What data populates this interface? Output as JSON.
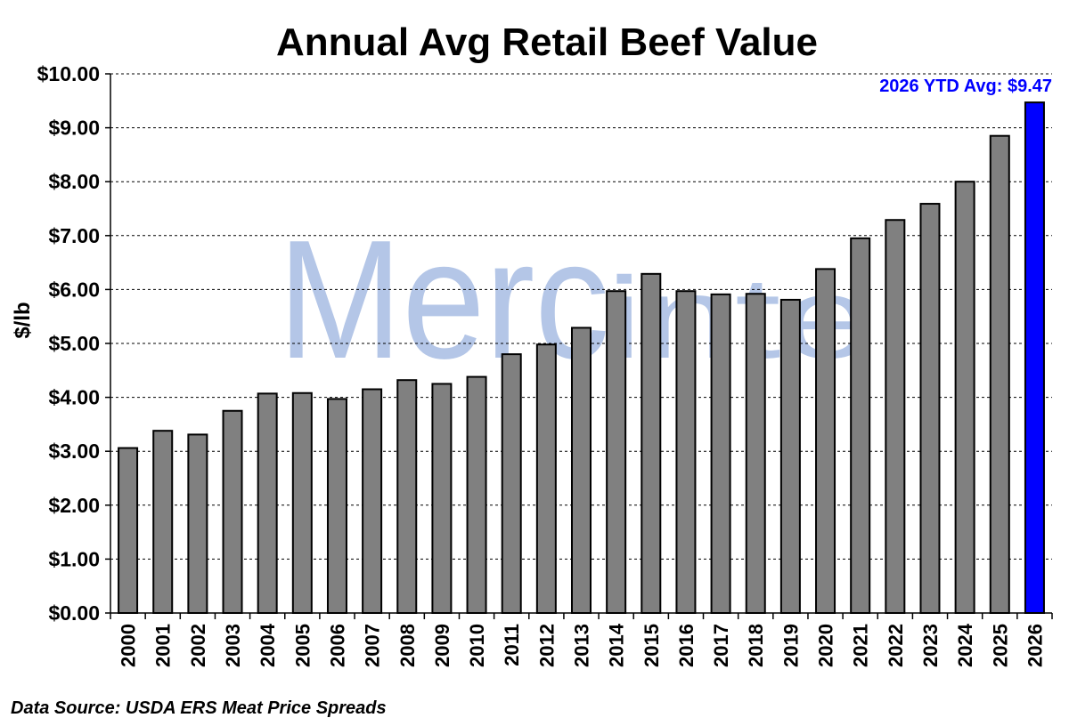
{
  "chart_data": {
    "type": "bar",
    "title": "Annual Avg Retail Beef Value",
    "ylabel": "$/lb",
    "xlabel": "",
    "ylim": [
      0,
      10
    ],
    "ytick_labels": [
      "$0.00",
      "$1.00",
      "$2.00",
      "$3.00",
      "$4.00",
      "$5.00",
      "$6.00",
      "$7.00",
      "$8.00",
      "$9.00",
      "$10.00"
    ],
    "ytick_values": [
      0,
      1,
      2,
      3,
      4,
      5,
      6,
      7,
      8,
      9,
      10
    ],
    "grid": "horizontal dashed",
    "legend": "none",
    "categories": [
      "2000",
      "2001",
      "2002",
      "2003",
      "2004",
      "2005",
      "2006",
      "2007",
      "2008",
      "2009",
      "2010",
      "2011",
      "2012",
      "2013",
      "2014",
      "2015",
      "2016",
      "2017",
      "2018",
      "2019",
      "2020",
      "2021",
      "2022",
      "2023",
      "2024",
      "2025",
      "2026"
    ],
    "values": [
      3.06,
      3.38,
      3.31,
      3.75,
      4.07,
      4.08,
      3.97,
      4.15,
      4.32,
      4.25,
      4.38,
      4.8,
      4.98,
      5.29,
      5.97,
      6.29,
      5.97,
      5.91,
      5.92,
      5.81,
      6.38,
      6.95,
      7.29,
      7.59,
      8.0,
      8.85,
      9.47
    ],
    "bar_color": "#808080",
    "highlight_color": "#0000ff",
    "highlight_category": "2026",
    "annotation": {
      "text": "2026 YTD Avg: $9.47",
      "color": "#0000ff"
    },
    "source": "Data Source: USDA ERS Meat Price Spreads",
    "watermark": "Mercinte",
    "watermark_color": "#b4c6e7"
  }
}
